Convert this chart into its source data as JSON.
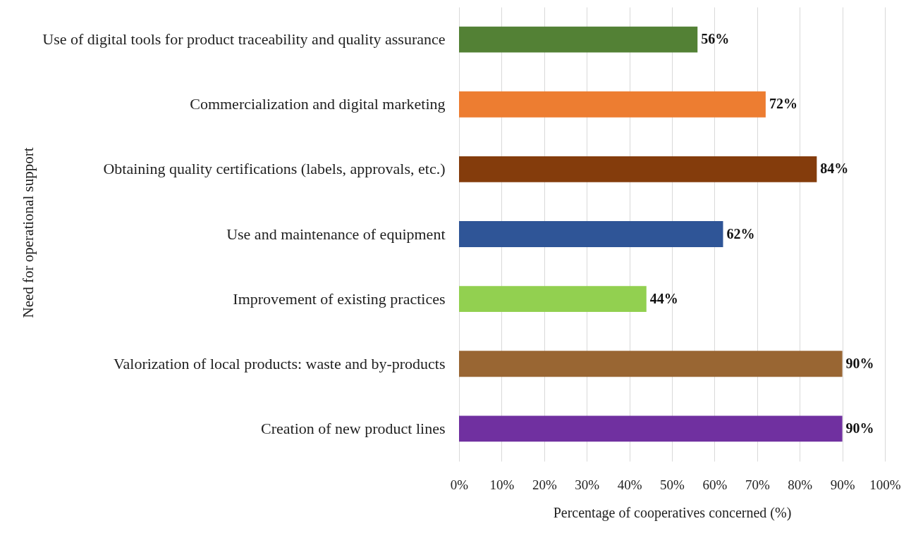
{
  "chart_data": {
    "type": "bar",
    "orientation": "horizontal",
    "xlabel": "Percentage of cooperatives concerned (%)",
    "ylabel": "Need for operational support",
    "categories": [
      "Use of digital tools for product traceability and quality assurance",
      "Commercialization and digital marketing",
      "Obtaining quality certifications (labels, approvals, etc.)",
      "Use and maintenance of equipment",
      "Improvement of existing practices",
      "Valorization of local products: waste and by-products",
      "Creation of new product lines"
    ],
    "values": [
      56,
      72,
      84,
      62,
      44,
      90,
      90
    ],
    "colors": [
      "#538135",
      "#ed7d31",
      "#843c0c",
      "#2f5597",
      "#92d050",
      "#996633",
      "#7030a0"
    ],
    "value_labels": [
      "56%",
      "72%",
      "84%",
      "62%",
      "44%",
      "90%",
      "90%"
    ],
    "xlim": [
      0,
      100
    ],
    "xticks": [
      {
        "value": 0,
        "label": "0%"
      },
      {
        "value": 10,
        "label": "10%"
      },
      {
        "value": 20,
        "label": "20%"
      },
      {
        "value": 30,
        "label": "30%"
      },
      {
        "value": 40,
        "label": "40%"
      },
      {
        "value": 50,
        "label": "50%"
      },
      {
        "value": 60,
        "label": "60%"
      },
      {
        "value": 70,
        "label": "70%"
      },
      {
        "value": 80,
        "label": "80%"
      },
      {
        "value": 90,
        "label": "90%"
      },
      {
        "value": 100,
        "label": "100%"
      }
    ],
    "grid": "x",
    "legend": false
  }
}
